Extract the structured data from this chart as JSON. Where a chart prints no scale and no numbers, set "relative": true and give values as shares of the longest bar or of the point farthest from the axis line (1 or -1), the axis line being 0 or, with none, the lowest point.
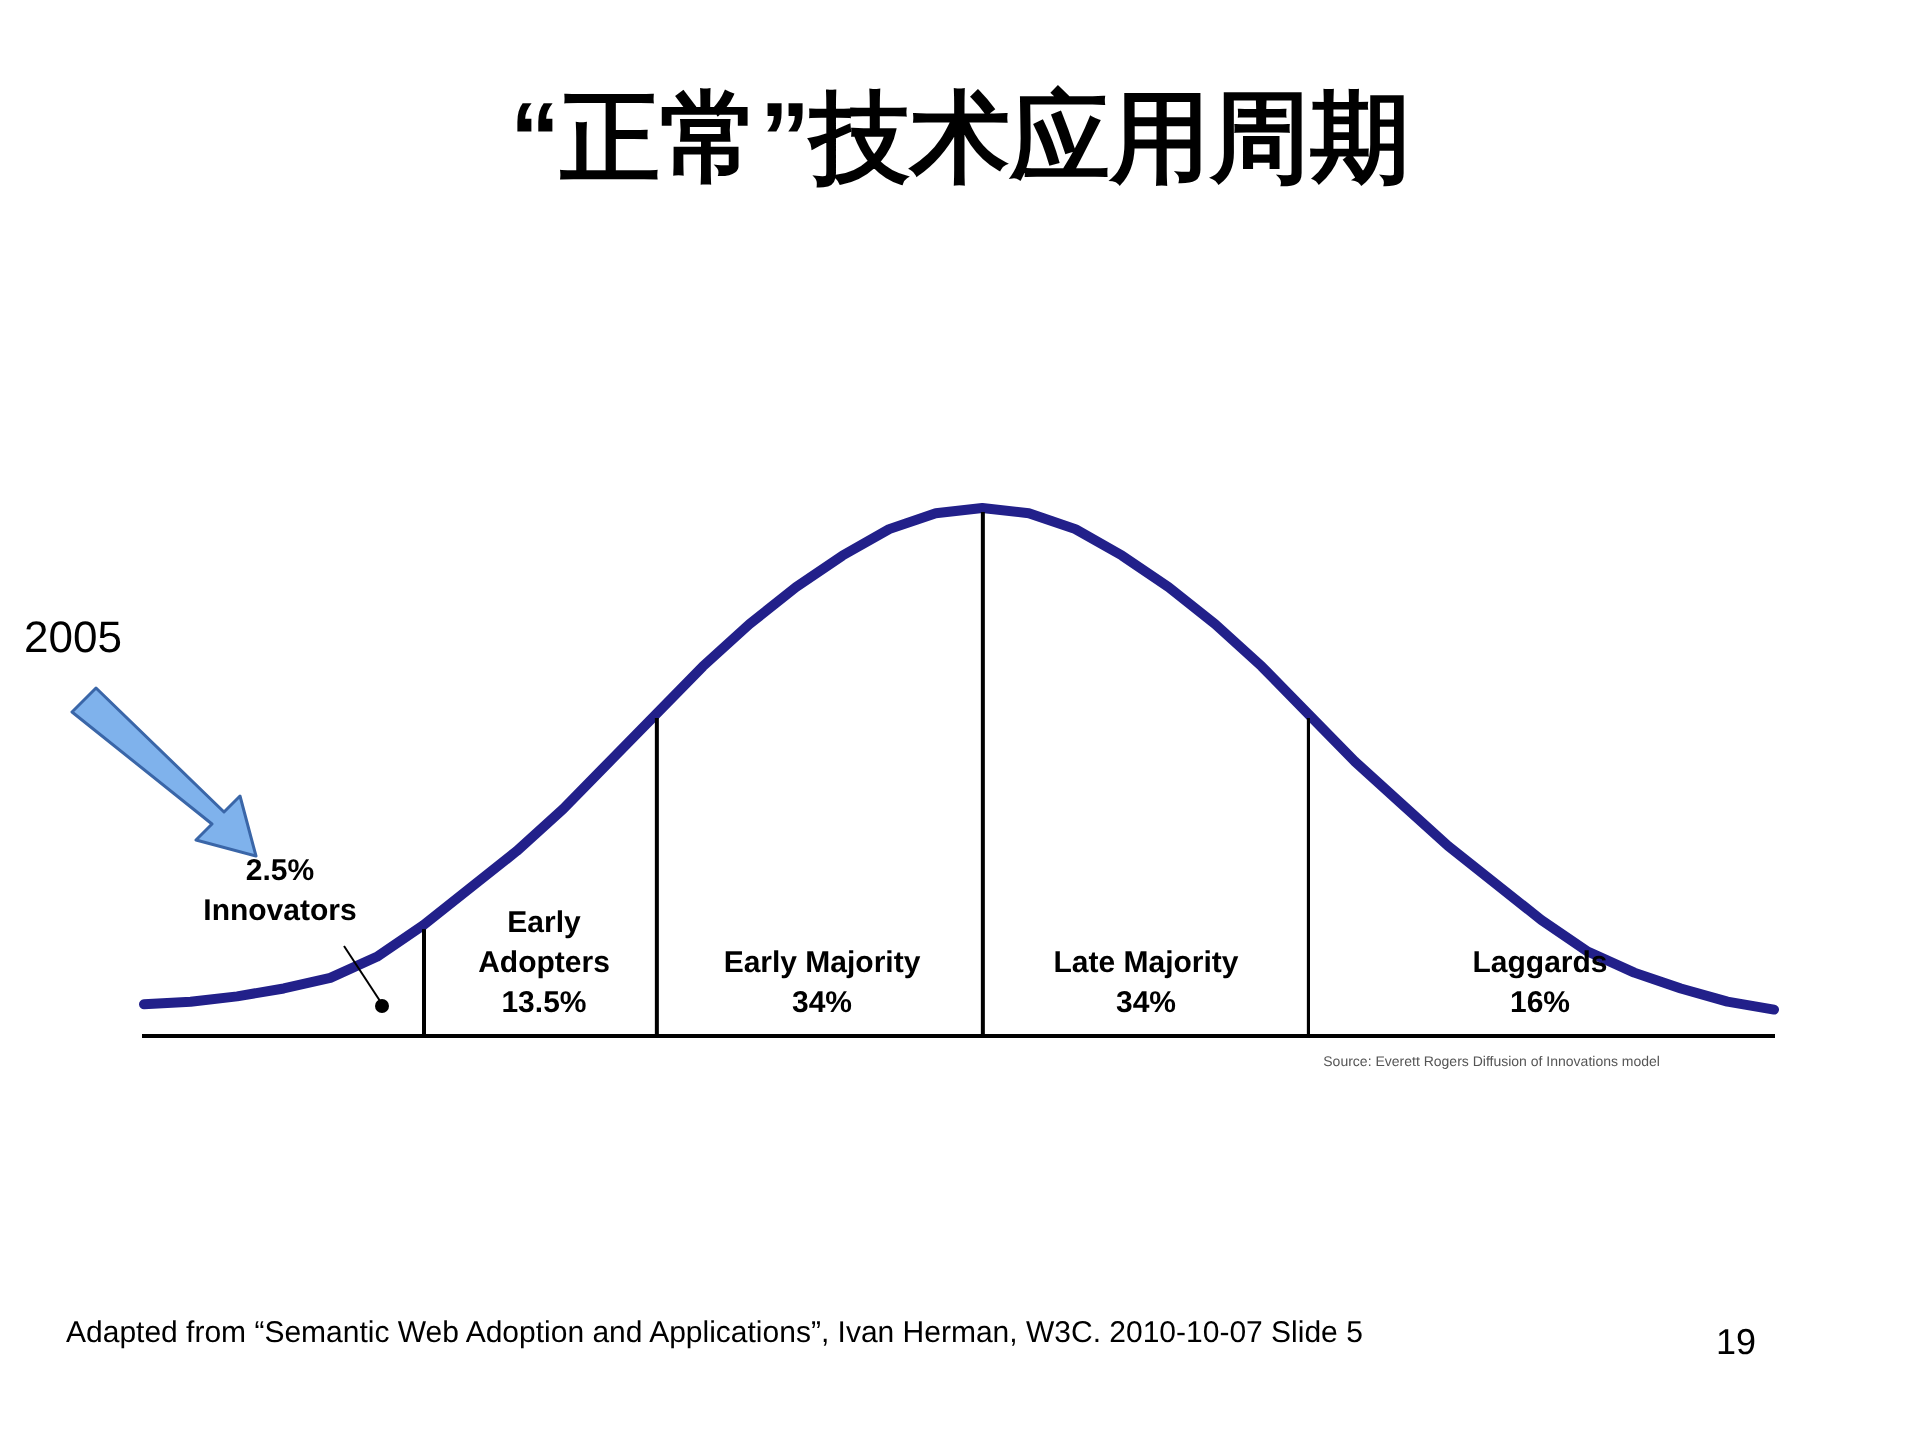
{
  "chart_data": {
    "type": "line",
    "title": "“正常”技术应用周期",
    "relative": true,
    "marker": "none",
    "categories": [
      null,
      null,
      null,
      null,
      null,
      null,
      null,
      null,
      null,
      null,
      null,
      null,
      null,
      null,
      null,
      null,
      null,
      null,
      null,
      null,
      null,
      null,
      null,
      null,
      null,
      null,
      null,
      null,
      null,
      null,
      null,
      null,
      null,
      null,
      null,
      null
    ],
    "series": [
      {
        "color": "#22208a",
        "values": [
          0.06,
          0.065,
          0.075,
          0.09,
          0.11,
          0.15,
          0.21,
          0.28,
          0.35,
          0.43,
          0.52,
          0.61,
          0.7,
          0.78,
          0.85,
          0.91,
          0.96,
          0.99,
          1,
          0.99,
          0.96,
          0.91,
          0.85,
          0.78,
          0.7,
          0.61,
          0.52,
          0.44,
          0.36,
          0.29,
          0.22,
          0.16,
          0.12,
          0.09,
          0.065,
          0.05
        ]
      }
    ],
    "annotations": [
      "2005",
      "2.5%\nInnovators",
      "Early\nAdopters\n13.5%",
      "Early Majority\n34%",
      "Late Majority\n34%",
      "Laggards\n16%",
      "Source: Everett Rogers Diffusion of Innovations model",
      "Adapted from “Semantic Web Adoption and Applications”, Ivan Herman, W3C. 2010-10-07 Slide 5",
      "19"
    ]
  }
}
